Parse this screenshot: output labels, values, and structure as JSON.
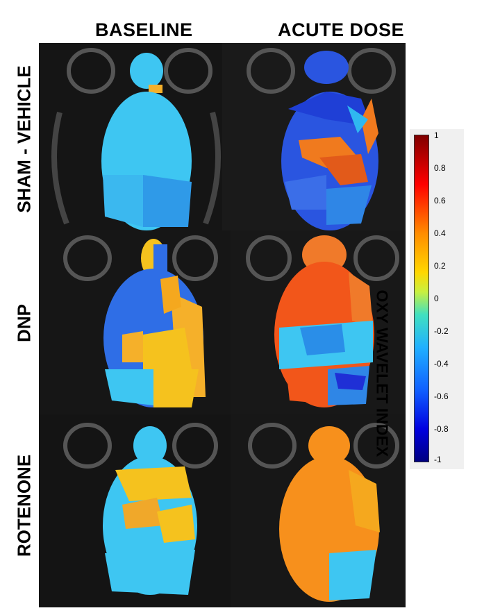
{
  "columns": [
    "BASELINE",
    "ACUTE DOSE"
  ],
  "rows": [
    "SHAM -  VEHICLE",
    "DNP",
    "ROTENONE"
  ],
  "colorbar": {
    "title": "OXY WAVELET INDEX",
    "ticks": [
      "1",
      "0.8",
      "0.6",
      "0.4",
      "0.2",
      "0",
      "-0.2",
      "-0.4",
      "-0.6",
      "-0.8",
      "-1"
    ],
    "range": [
      -1,
      1
    ]
  },
  "panels": [
    {
      "row": "SHAM -  VEHICLE",
      "column": "BASELINE",
      "dominant_color": "#3ec6f2",
      "second_color": "#2f9ae8"
    },
    {
      "row": "SHAM -  VEHICLE",
      "column": "ACUTE DOSE",
      "dominant_color": "#2a55e0",
      "second_color": "#f07a1e"
    },
    {
      "row": "DNP",
      "column": "BASELINE",
      "dominant_color": "#2f6ee6",
      "second_color": "#f5b02a"
    },
    {
      "row": "DNP",
      "column": "ACUTE DOSE",
      "dominant_color": "#f2561a",
      "second_color": "#2a8ee8"
    },
    {
      "row": "ROTENONE",
      "column": "BASELINE",
      "dominant_color": "#3ec6f2",
      "second_color": "#f5c21e"
    },
    {
      "row": "ROTENONE",
      "column": "ACUTE DOSE",
      "dominant_color": "#f7901c",
      "second_color": "#3ec6f2"
    }
  ]
}
